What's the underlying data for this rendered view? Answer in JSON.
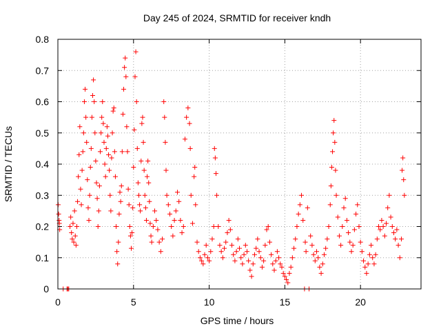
{
  "chart_data": {
    "type": "scatter",
    "title": "Day 245 of 2024, SRMTID for receiver kndh",
    "xlabel": "GPS time / hours",
    "ylabel": "SRMTID / TECUs",
    "xlim": [
      0,
      24
    ],
    "ylim": [
      0,
      0.8
    ],
    "x_ticks": [
      0,
      5,
      10,
      15,
      20
    ],
    "x_tick_labels": [
      "0",
      "5",
      "10",
      "15",
      "20"
    ],
    "y_ticks": [
      0,
      0.1,
      0.2,
      0.3,
      0.4,
      0.5,
      0.6,
      0.7,
      0.8
    ],
    "y_tick_labels": [
      "0",
      "0.1",
      "0.2",
      "0.3",
      "0.4",
      "0.5",
      "0.6",
      "0.7",
      "0.8"
    ],
    "grid": true,
    "marker": "+",
    "marker_color": "#ff0000",
    "series": [
      {
        "name": "SRMTID",
        "points": [
          [
            0.02,
            0.27
          ],
          [
            0.05,
            0.24
          ],
          [
            0.08,
            0.22
          ],
          [
            0.1,
            0.21
          ],
          [
            0.12,
            0.19
          ],
          [
            0.35,
            0.0
          ],
          [
            0.6,
            0.0
          ],
          [
            0.66,
            0.0
          ],
          [
            0.72,
            0.0
          ],
          [
            0.8,
            0.2
          ],
          [
            0.85,
            0.23
          ],
          [
            0.9,
            0.18
          ],
          [
            0.95,
            0.16
          ],
          [
            1.0,
            0.21
          ],
          [
            1.05,
            0.15
          ],
          [
            1.1,
            0.25
          ],
          [
            1.15,
            0.17
          ],
          [
            1.2,
            0.14
          ],
          [
            1.25,
            0.2
          ],
          [
            1.3,
            0.28
          ],
          [
            1.35,
            0.36
          ],
          [
            1.4,
            0.43
          ],
          [
            1.45,
            0.52
          ],
          [
            1.5,
            0.32
          ],
          [
            1.55,
            0.27
          ],
          [
            1.6,
            0.38
          ],
          [
            1.65,
            0.44
          ],
          [
            1.7,
            0.5
          ],
          [
            1.75,
            0.6
          ],
          [
            1.8,
            0.64
          ],
          [
            1.85,
            0.55
          ],
          [
            1.9,
            0.47
          ],
          [
            1.95,
            0.35
          ],
          [
            2.0,
            0.26
          ],
          [
            2.05,
            0.22
          ],
          [
            2.1,
            0.3
          ],
          [
            2.15,
            0.39
          ],
          [
            2.2,
            0.45
          ],
          [
            2.25,
            0.55
          ],
          [
            2.3,
            0.62
          ],
          [
            2.35,
            0.67
          ],
          [
            2.4,
            0.6
          ],
          [
            2.45,
            0.5
          ],
          [
            2.5,
            0.41
          ],
          [
            2.55,
            0.34
          ],
          [
            2.6,
            0.29
          ],
          [
            2.65,
            0.2
          ],
          [
            2.7,
            0.25
          ],
          [
            2.75,
            0.33
          ],
          [
            2.8,
            0.44
          ],
          [
            2.85,
            0.5
          ],
          [
            2.9,
            0.55
          ],
          [
            2.95,
            0.6
          ],
          [
            3.0,
            0.53
          ],
          [
            3.05,
            0.47
          ],
          [
            3.1,
            0.4
          ],
          [
            3.15,
            0.36
          ],
          [
            3.2,
            0.45
          ],
          [
            3.25,
            0.52
          ],
          [
            3.3,
            0.49
          ],
          [
            3.35,
            0.43
          ],
          [
            3.4,
            0.38
          ],
          [
            3.45,
            0.3
          ],
          [
            3.5,
            0.25
          ],
          [
            3.55,
            0.42
          ],
          [
            3.6,
            0.5
          ],
          [
            3.65,
            0.57
          ],
          [
            3.7,
            0.58
          ],
          [
            3.75,
            0.44
          ],
          [
            3.8,
            0.36
          ],
          [
            3.85,
            0.2
          ],
          [
            3.9,
            0.12
          ],
          [
            3.95,
            0.08
          ],
          [
            4.0,
            0.15
          ],
          [
            4.05,
            0.24
          ],
          [
            4.1,
            0.31
          ],
          [
            4.15,
            0.28
          ],
          [
            4.2,
            0.33
          ],
          [
            4.25,
            0.44
          ],
          [
            4.3,
            0.56
          ],
          [
            4.35,
            0.64
          ],
          [
            4.4,
            0.71
          ],
          [
            4.45,
            0.74
          ],
          [
            4.5,
            0.68
          ],
          [
            4.55,
            0.52
          ],
          [
            4.6,
            0.44
          ],
          [
            4.65,
            0.32
          ],
          [
            4.7,
            0.27
          ],
          [
            4.75,
            0.2
          ],
          [
            4.8,
            0.17
          ],
          [
            4.85,
            0.13
          ],
          [
            4.9,
            0.18
          ],
          [
            4.95,
            0.26
          ],
          [
            5.0,
            0.39
          ],
          [
            5.05,
            0.51
          ],
          [
            5.1,
            0.68
          ],
          [
            5.15,
            0.76
          ],
          [
            5.2,
            0.6
          ],
          [
            5.25,
            0.45
          ],
          [
            5.3,
            0.34
          ],
          [
            5.35,
            0.3
          ],
          [
            5.4,
            0.27
          ],
          [
            5.45,
            0.25
          ],
          [
            5.5,
            0.41
          ],
          [
            5.55,
            0.53
          ],
          [
            5.6,
            0.55
          ],
          [
            5.65,
            0.47
          ],
          [
            5.7,
            0.38
          ],
          [
            5.75,
            0.3
          ],
          [
            5.8,
            0.26
          ],
          [
            5.85,
            0.22
          ],
          [
            5.9,
            0.36
          ],
          [
            5.95,
            0.41
          ],
          [
            6.0,
            0.34
          ],
          [
            6.05,
            0.28
          ],
          [
            6.1,
            0.21
          ],
          [
            6.15,
            0.17
          ],
          [
            6.2,
            0.15
          ],
          [
            6.3,
            0.2
          ],
          [
            6.4,
            0.25
          ],
          [
            6.5,
            0.22
          ],
          [
            6.6,
            0.19
          ],
          [
            6.7,
            0.15
          ],
          [
            6.8,
            0.12
          ],
          [
            6.9,
            0.16
          ],
          [
            7.0,
            0.6
          ],
          [
            7.05,
            0.55
          ],
          [
            7.1,
            0.47
          ],
          [
            7.15,
            0.38
          ],
          [
            7.2,
            0.3
          ],
          [
            7.3,
            0.27
          ],
          [
            7.4,
            0.24
          ],
          [
            7.5,
            0.2
          ],
          [
            7.6,
            0.17
          ],
          [
            7.7,
            0.22
          ],
          [
            7.8,
            0.25
          ],
          [
            7.9,
            0.31
          ],
          [
            8.0,
            0.28
          ],
          [
            8.1,
            0.22
          ],
          [
            8.2,
            0.18
          ],
          [
            8.3,
            0.2
          ],
          [
            8.4,
            0.48
          ],
          [
            8.5,
            0.55
          ],
          [
            8.6,
            0.58
          ],
          [
            8.7,
            0.53
          ],
          [
            8.75,
            0.45
          ],
          [
            8.8,
            0.3
          ],
          [
            8.9,
            0.21
          ],
          [
            9.0,
            0.36
          ],
          [
            9.05,
            0.39
          ],
          [
            9.1,
            0.27
          ],
          [
            9.2,
            0.15
          ],
          [
            9.3,
            0.12
          ],
          [
            9.4,
            0.1
          ],
          [
            9.5,
            0.09
          ],
          [
            9.6,
            0.08
          ],
          [
            9.7,
            0.11
          ],
          [
            9.8,
            0.14
          ],
          [
            9.9,
            0.1
          ],
          [
            10.0,
            0.09
          ],
          [
            10.1,
            0.12
          ],
          [
            10.2,
            0.16
          ],
          [
            10.3,
            0.2
          ],
          [
            10.35,
            0.45
          ],
          [
            10.4,
            0.42
          ],
          [
            10.45,
            0.37
          ],
          [
            10.5,
            0.3
          ],
          [
            10.6,
            0.2
          ],
          [
            10.7,
            0.14
          ],
          [
            10.8,
            0.12
          ],
          [
            10.9,
            0.1
          ],
          [
            11.0,
            0.13
          ],
          [
            11.1,
            0.15
          ],
          [
            11.2,
            0.18
          ],
          [
            11.3,
            0.22
          ],
          [
            11.4,
            0.19
          ],
          [
            11.5,
            0.14
          ],
          [
            11.6,
            0.11
          ],
          [
            11.7,
            0.09
          ],
          [
            11.8,
            0.12
          ],
          [
            11.9,
            0.16
          ],
          [
            12.0,
            0.13
          ],
          [
            12.1,
            0.1
          ],
          [
            12.2,
            0.08
          ],
          [
            12.3,
            0.11
          ],
          [
            12.4,
            0.14
          ],
          [
            12.5,
            0.12
          ],
          [
            12.6,
            0.09
          ],
          [
            12.7,
            0.06
          ],
          [
            12.8,
            0.04
          ],
          [
            12.9,
            0.08
          ],
          [
            13.0,
            0.11
          ],
          [
            13.1,
            0.13
          ],
          [
            13.2,
            0.16
          ],
          [
            13.3,
            0.12
          ],
          [
            13.4,
            0.1
          ],
          [
            13.5,
            0.07
          ],
          [
            13.6,
            0.09
          ],
          [
            13.7,
            0.14
          ],
          [
            13.8,
            0.19
          ],
          [
            13.9,
            0.2
          ],
          [
            14.0,
            0.15
          ],
          [
            14.1,
            0.11
          ],
          [
            14.2,
            0.08
          ],
          [
            14.3,
            0.06
          ],
          [
            14.4,
            0.09
          ],
          [
            14.5,
            0.12
          ],
          [
            14.6,
            0.1
          ],
          [
            14.7,
            0.08
          ],
          [
            14.8,
            0.07
          ],
          [
            14.9,
            0.05
          ],
          [
            15.0,
            0.04
          ],
          [
            15.1,
            0.03
          ],
          [
            15.2,
            0.02
          ],
          [
            15.3,
            0.05
          ],
          [
            15.4,
            0.07
          ],
          [
            15.5,
            0.1
          ],
          [
            15.6,
            0.13
          ],
          [
            15.7,
            0.16
          ],
          [
            15.8,
            0.2
          ],
          [
            15.9,
            0.24
          ],
          [
            16.0,
            0.27
          ],
          [
            16.1,
            0.3
          ],
          [
            16.2,
            0.22
          ],
          [
            16.3,
            0.0
          ],
          [
            16.35,
            0.15
          ],
          [
            16.4,
            0.12
          ],
          [
            16.5,
            0.26
          ],
          [
            16.6,
            0.0
          ],
          [
            16.7,
            0.17
          ],
          [
            16.8,
            0.14
          ],
          [
            16.9,
            0.11
          ],
          [
            17.0,
            0.09
          ],
          [
            17.1,
            0.12
          ],
          [
            17.2,
            0.1
          ],
          [
            17.3,
            0.07
          ],
          [
            17.4,
            0.05
          ],
          [
            17.5,
            0.08
          ],
          [
            17.6,
            0.11
          ],
          [
            17.7,
            0.13
          ],
          [
            17.8,
            0.16
          ],
          [
            17.9,
            0.2
          ],
          [
            18.0,
            0.27
          ],
          [
            18.05,
            0.33
          ],
          [
            18.1,
            0.39
          ],
          [
            18.15,
            0.44
          ],
          [
            18.2,
            0.5
          ],
          [
            18.25,
            0.54
          ],
          [
            18.3,
            0.47
          ],
          [
            18.35,
            0.38
          ],
          [
            18.4,
            0.3
          ],
          [
            18.5,
            0.23
          ],
          [
            18.6,
            0.17
          ],
          [
            18.7,
            0.14
          ],
          [
            18.8,
            0.2
          ],
          [
            18.9,
            0.26
          ],
          [
            19.0,
            0.29
          ],
          [
            19.1,
            0.22
          ],
          [
            19.2,
            0.18
          ],
          [
            19.3,
            0.15
          ],
          [
            19.4,
            0.12
          ],
          [
            19.5,
            0.14
          ],
          [
            19.6,
            0.19
          ],
          [
            19.7,
            0.24
          ],
          [
            19.8,
            0.27
          ],
          [
            19.9,
            0.2
          ],
          [
            20.0,
            0.15
          ],
          [
            20.1,
            0.12
          ],
          [
            20.2,
            0.09
          ],
          [
            20.3,
            0.07
          ],
          [
            20.4,
            0.05
          ],
          [
            20.5,
            0.08
          ],
          [
            20.6,
            0.11
          ],
          [
            20.7,
            0.14
          ],
          [
            20.8,
            0.1
          ],
          [
            20.9,
            0.08
          ],
          [
            21.0,
            0.11
          ],
          [
            21.1,
            0.16
          ],
          [
            21.2,
            0.2
          ],
          [
            21.3,
            0.19
          ],
          [
            21.4,
            0.22
          ],
          [
            21.5,
            0.2
          ],
          [
            21.6,
            0.17
          ],
          [
            21.7,
            0.21
          ],
          [
            21.8,
            0.26
          ],
          [
            21.9,
            0.3
          ],
          [
            22.0,
            0.23
          ],
          [
            22.1,
            0.2
          ],
          [
            22.2,
            0.18
          ],
          [
            22.3,
            0.16
          ],
          [
            22.4,
            0.19
          ],
          [
            22.5,
            0.14
          ],
          [
            22.6,
            0.1
          ],
          [
            22.7,
            0.16
          ],
          [
            22.75,
            0.38
          ],
          [
            22.8,
            0.42
          ],
          [
            22.85,
            0.35
          ],
          [
            22.9,
            0.3
          ]
        ]
      }
    ]
  }
}
